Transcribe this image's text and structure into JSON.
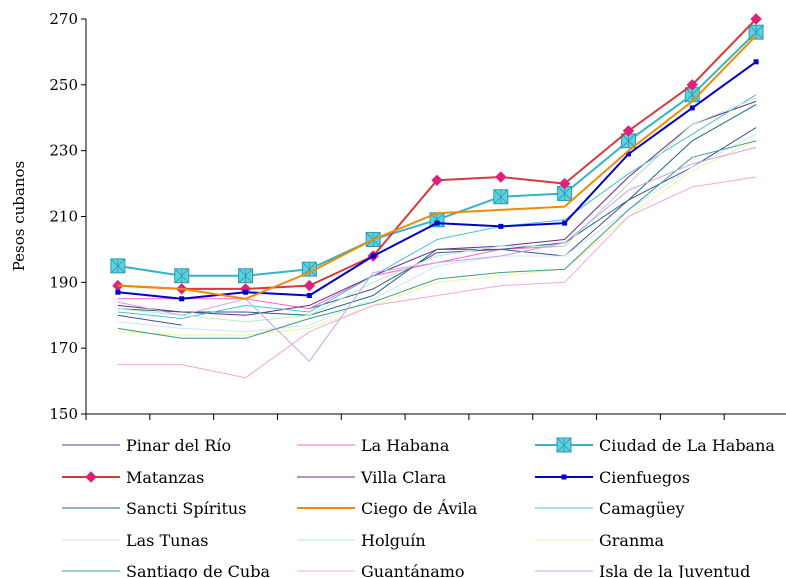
{
  "chart_data": {
    "type": "line",
    "x": [
      1,
      2,
      3,
      4,
      5,
      6,
      7,
      8,
      9,
      10,
      11
    ],
    "ylabel": "Pesos cubanos",
    "xlabel": "",
    "ylim": [
      150,
      270
    ],
    "yticks": [
      150,
      170,
      190,
      210,
      230,
      250,
      270
    ],
    "x_tick_labels_shown": false,
    "legend_position": "bottom",
    "series": [
      {
        "name": "Pinar del Río",
        "color": "#4a4aa0",
        "width": 1,
        "marker": "none",
        "values": [
          180,
          177,
          null,
          182,
          188,
          199,
          200,
          198,
          215,
          225,
          237
        ]
      },
      {
        "name": "La Habana",
        "color": "#ff66cc",
        "width": 1,
        "marker": "none",
        "values": [
          185,
          185,
          185,
          182,
          192,
          196,
          200,
          201,
          220,
          238,
          245
        ]
      },
      {
        "name": "Ciudad de La Habana",
        "color": "#33b5c9",
        "width": 2,
        "marker": "square",
        "values": [
          195,
          192,
          192,
          194,
          203,
          209,
          216,
          217,
          233,
          247,
          266
        ]
      },
      {
        "name": "Matanzas",
        "color": "#d43a3a",
        "width": 2,
        "marker": "diamond",
        "values": [
          189,
          188,
          188,
          189,
          198,
          221,
          222,
          220,
          236,
          250,
          270
        ]
      },
      {
        "name": "Villa Clara",
        "color": "#6a2a8a",
        "width": 1,
        "marker": "none",
        "values": [
          183,
          181,
          180,
          183,
          192,
          200,
          201,
          203,
          222,
          238,
          245
        ]
      },
      {
        "name": "Cienfuegos",
        "color": "#0000cc",
        "width": 2,
        "marker": "small-square",
        "values": [
          187,
          185,
          187,
          186,
          198,
          208,
          207,
          208,
          229,
          243,
          257
        ]
      },
      {
        "name": "Sancti Spíritus",
        "color": "#1a6a7a",
        "width": 1,
        "marker": "none",
        "values": [
          182,
          181,
          181,
          180,
          186,
          200,
          200,
          202,
          215,
          233,
          244
        ]
      },
      {
        "name": "Ciego de Ávila",
        "color": "#f08c00",
        "width": 2,
        "marker": "none",
        "values": [
          189,
          188,
          185,
          193,
          203,
          211,
          212,
          213,
          230,
          245,
          265
        ]
      },
      {
        "name": "Camagüey",
        "color": "#44c4d8",
        "width": 1,
        "marker": "none",
        "values": [
          181,
          179,
          183,
          181,
          192,
          203,
          207,
          209,
          223,
          235,
          247
        ]
      },
      {
        "name": "Las Tunas",
        "color": "#c8e8f4",
        "width": 1,
        "marker": "none",
        "values": [
          178,
          176,
          175,
          177,
          185,
          195,
          198,
          198,
          212,
          225,
          235
        ]
      },
      {
        "name": "Holguín",
        "color": "#b8ecc8",
        "width": 1,
        "marker": "none",
        "values": [
          182,
          180,
          178,
          180,
          190,
          198,
          201,
          201,
          220,
          238,
          246
        ]
      },
      {
        "name": "Granma",
        "color": "#f2f2a0",
        "width": 1,
        "marker": "none",
        "values": [
          175,
          174,
          174,
          176,
          183,
          190,
          192,
          194,
          210,
          224,
          233
        ]
      },
      {
        "name": "Santiago de Cuba",
        "color": "#3c9c88",
        "width": 1,
        "marker": "none",
        "values": [
          176,
          173,
          173,
          179,
          184,
          191,
          193,
          194,
          212,
          228,
          233
        ]
      },
      {
        "name": "Guantánamo",
        "color": "#f5a8d8",
        "width": 1,
        "marker": "none",
        "values": [
          165,
          165,
          161,
          175,
          183,
          186,
          189,
          190,
          210,
          219,
          222
        ]
      },
      {
        "name": "Isla de la Juventud",
        "color": "#c9a0f0",
        "width": 1,
        "marker": "none",
        "values": [
          184,
          180,
          185,
          166,
          193,
          196,
          198,
          202,
          218,
          226,
          231
        ]
      }
    ]
  }
}
